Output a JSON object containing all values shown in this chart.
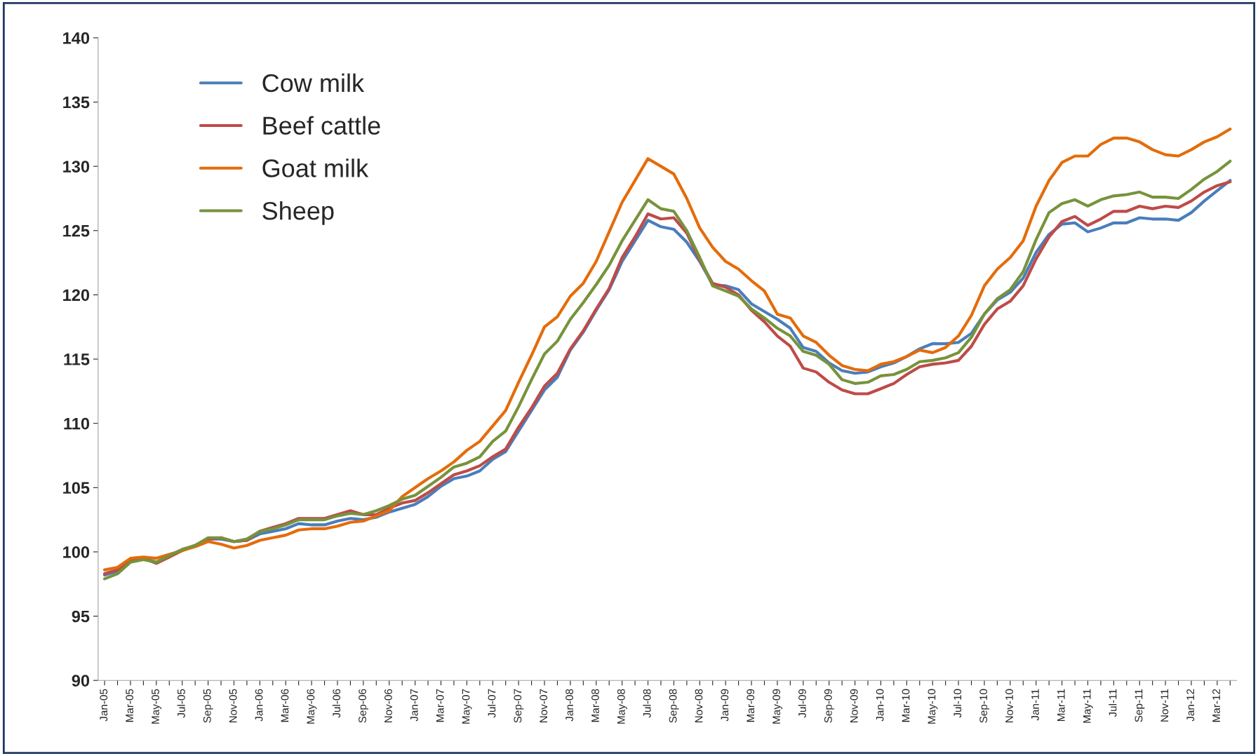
{
  "chart_data": {
    "type": "line",
    "categories": [
      "Jan-05",
      null,
      "Mar-05",
      null,
      "May-05",
      null,
      "Jul-05",
      null,
      "Sep-05",
      null,
      "Nov-05",
      null,
      "Jan-06",
      null,
      "Mar-06",
      null,
      "May-06",
      null,
      "Jul-06",
      null,
      "Sep-06",
      null,
      "Nov-06",
      null,
      "Jan-07",
      null,
      "Mar-07",
      null,
      "May-07",
      null,
      "Jul-07",
      null,
      "Sep-07",
      null,
      "Nov-07",
      null,
      "Jan-08",
      null,
      "Mar-08",
      null,
      "May-08",
      null,
      "Jul-08",
      null,
      "Sep-08",
      null,
      "Nov-08",
      null,
      "Jan-09",
      null,
      "Mar-09",
      null,
      "May-09",
      null,
      "Jul-09",
      null,
      "Sep-09",
      null,
      "Nov-09",
      null,
      "Jan-10",
      null,
      "Mar-10",
      null,
      "May-10",
      null,
      "Jul-10",
      null,
      "Sep-10",
      null,
      "Nov-10",
      null,
      "Jan-11",
      null,
      "Mar-11",
      null,
      "May-11",
      null,
      "Jul-11",
      null,
      "Sep-11",
      null,
      "Nov-11",
      null,
      "Jan-12",
      null,
      "Mar-12",
      null
    ],
    "series": [
      {
        "name": "Cow milk",
        "color": "#4a7ebb",
        "values": [
          98.2,
          98.5,
          99.3,
          99.5,
          99.2,
          99.7,
          100.1,
          100.5,
          101.0,
          101.0,
          100.8,
          100.9,
          101.4,
          101.6,
          101.8,
          102.2,
          102.1,
          102.1,
          102.4,
          102.6,
          102.5,
          102.7,
          103.1,
          103.4,
          103.7,
          104.3,
          105.1,
          105.7,
          105.9,
          106.3,
          107.2,
          107.8,
          109.4,
          111.0,
          112.6,
          113.6,
          115.7,
          117.1,
          118.8,
          120.4,
          122.6,
          124.2,
          125.8,
          125.3,
          125.1,
          124.1,
          122.6,
          120.8,
          120.7,
          120.4,
          119.3,
          118.7,
          118.1,
          117.4,
          115.9,
          115.6,
          114.7,
          114.1,
          113.9,
          114.0,
          114.4,
          114.7,
          115.2,
          115.8,
          116.2,
          116.2,
          116.3,
          117.0,
          118.5,
          119.6,
          120.2,
          121.3,
          123.3,
          124.7,
          125.5,
          125.6,
          124.9,
          125.2,
          125.6,
          125.6,
          126.0,
          125.9,
          125.9,
          125.8,
          126.4,
          127.3,
          128.1,
          128.9
        ]
      },
      {
        "name": "Beef cattle",
        "color": "#be4b48",
        "values": [
          98.3,
          98.6,
          99.4,
          99.5,
          99.1,
          99.6,
          100.1,
          100.5,
          101.0,
          101.1,
          100.8,
          100.9,
          101.6,
          101.9,
          102.2,
          102.6,
          102.6,
          102.6,
          102.9,
          103.2,
          102.9,
          102.9,
          103.4,
          103.8,
          104.0,
          104.6,
          105.3,
          106.0,
          106.3,
          106.7,
          107.4,
          108.0,
          109.7,
          111.2,
          112.9,
          113.9,
          115.8,
          117.2,
          118.9,
          120.5,
          122.9,
          124.5,
          126.3,
          125.9,
          126.0,
          124.8,
          122.7,
          120.9,
          120.6,
          120.0,
          118.8,
          117.9,
          116.8,
          116.0,
          114.3,
          114.0,
          113.2,
          112.6,
          112.3,
          112.3,
          112.7,
          113.1,
          113.8,
          114.4,
          114.6,
          114.7,
          114.9,
          116.0,
          117.7,
          118.9,
          119.5,
          120.7,
          122.8,
          124.5,
          125.7,
          126.1,
          125.4,
          125.9,
          126.5,
          126.5,
          126.9,
          126.7,
          126.9,
          126.8,
          127.3,
          128.0,
          128.5,
          128.8
        ]
      },
      {
        "name": "Goat milk",
        "color": "#e46c0a",
        "values": [
          98.6,
          98.8,
          99.5,
          99.6,
          99.5,
          99.8,
          100.1,
          100.4,
          100.8,
          100.6,
          100.3,
          100.5,
          100.9,
          101.1,
          101.3,
          101.7,
          101.8,
          101.8,
          102.0,
          102.3,
          102.4,
          102.8,
          103.2,
          104.3,
          105.0,
          105.7,
          106.3,
          107.0,
          107.9,
          108.6,
          109.8,
          111.0,
          113.2,
          115.3,
          117.5,
          118.3,
          119.9,
          120.9,
          122.6,
          124.9,
          127.2,
          128.9,
          130.6,
          130.0,
          129.4,
          127.5,
          125.2,
          123.7,
          122.6,
          122.0,
          121.1,
          120.3,
          118.5,
          118.2,
          116.8,
          116.3,
          115.3,
          114.5,
          114.2,
          114.1,
          114.6,
          114.8,
          115.2,
          115.7,
          115.5,
          115.9,
          116.8,
          118.4,
          120.7,
          122.0,
          122.9,
          124.2,
          126.9,
          128.9,
          130.3,
          130.8,
          130.8,
          131.7,
          132.2,
          132.2,
          131.9,
          131.3,
          130.9,
          130.8,
          131.3,
          131.9,
          132.3,
          132.9
        ]
      },
      {
        "name": "Sheep",
        "color": "#77933c",
        "values": [
          97.9,
          98.3,
          99.2,
          99.4,
          99.2,
          99.7,
          100.2,
          100.5,
          101.1,
          101.1,
          100.8,
          101.0,
          101.6,
          101.8,
          102.1,
          102.5,
          102.5,
          102.5,
          102.8,
          103.0,
          102.9,
          103.2,
          103.6,
          104.1,
          104.4,
          105.1,
          105.8,
          106.6,
          106.9,
          107.4,
          108.6,
          109.4,
          111.3,
          113.4,
          115.4,
          116.4,
          118.1,
          119.4,
          120.8,
          122.3,
          124.2,
          125.8,
          127.4,
          126.7,
          126.5,
          125.0,
          122.9,
          120.7,
          120.3,
          119.9,
          118.9,
          118.2,
          117.4,
          116.8,
          115.6,
          115.3,
          114.6,
          113.4,
          113.1,
          113.2,
          113.7,
          113.8,
          114.2,
          114.8,
          114.9,
          115.1,
          115.5,
          116.7,
          118.5,
          119.7,
          120.4,
          121.8,
          124.3,
          126.4,
          127.1,
          127.4,
          126.9,
          127.4,
          127.7,
          127.8,
          128.0,
          127.6,
          127.6,
          127.5,
          128.2,
          129.0,
          129.6,
          130.4
        ]
      }
    ],
    "ylim": [
      90,
      140
    ],
    "yticks": [
      90,
      95,
      100,
      105,
      110,
      115,
      120,
      125,
      130,
      135,
      140
    ],
    "legend": "top left",
    "grid": false
  }
}
